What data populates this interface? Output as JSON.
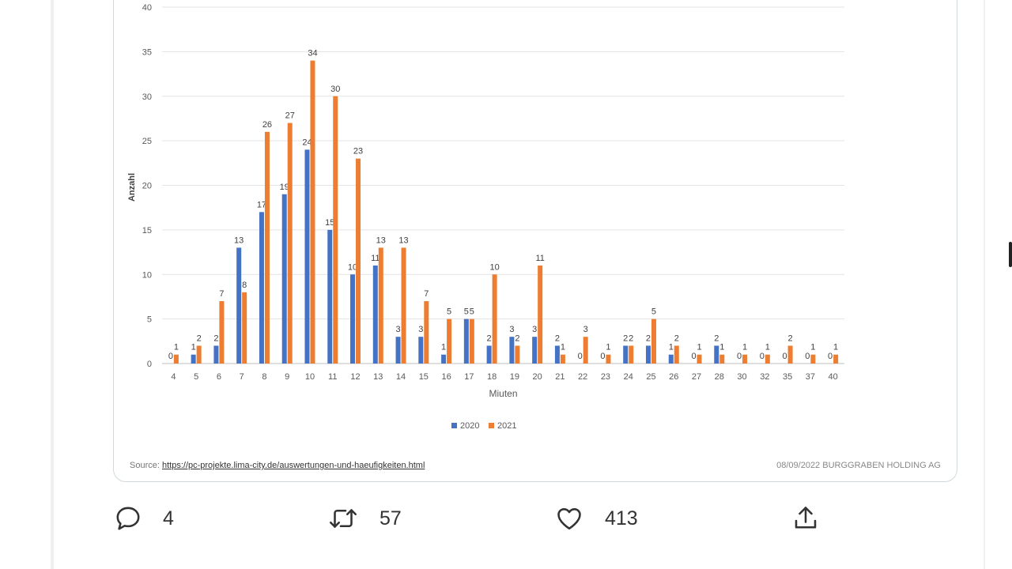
{
  "tweet": {
    "media": {
      "source_label": "Source:",
      "source_url": "https://pc-projekte.lima-city.de/auswertungen-und-haeufigkeiten.html",
      "stamp": "08/09/2022  BURGGRABEN HOLDING AG"
    },
    "actions": {
      "replies": {
        "icon": "reply-icon",
        "count": "4"
      },
      "retweets": {
        "icon": "retweet-icon",
        "count": "57"
      },
      "likes": {
        "icon": "heart-icon",
        "count": "413"
      },
      "share": {
        "icon": "share-icon"
      }
    }
  },
  "chart_data": {
    "type": "bar",
    "title": "",
    "xlabel": "Miuten",
    "ylabel": "Anzahl",
    "ylim": [
      0,
      40
    ],
    "yticks": [
      0,
      5,
      10,
      15,
      20,
      25,
      30,
      35,
      40
    ],
    "grid": true,
    "legend": "bottom-center",
    "categories": [
      "4",
      "5",
      "6",
      "7",
      "8",
      "9",
      "10",
      "11",
      "12",
      "13",
      "14",
      "15",
      "16",
      "17",
      "18",
      "19",
      "20",
      "21",
      "22",
      "23",
      "24",
      "25",
      "26",
      "27",
      "28",
      "30",
      "32",
      "35",
      "37",
      "40"
    ],
    "series": [
      {
        "name": "2020",
        "color": "#4472c4",
        "values": [
          0,
          1,
          2,
          13,
          17,
          19,
          24,
          15,
          10,
          11,
          3,
          3,
          1,
          5,
          2,
          3,
          3,
          2,
          0,
          0,
          2,
          2,
          1,
          0,
          2,
          0,
          0,
          0,
          0,
          0
        ]
      },
      {
        "name": "2021",
        "color": "#ed7d31",
        "values": [
          1,
          2,
          7,
          8,
          26,
          27,
          34,
          30,
          23,
          13,
          13,
          7,
          5,
          5,
          10,
          2,
          11,
          1,
          3,
          1,
          2,
          5,
          2,
          1,
          1,
          1,
          1,
          2,
          1,
          1
        ]
      }
    ]
  }
}
